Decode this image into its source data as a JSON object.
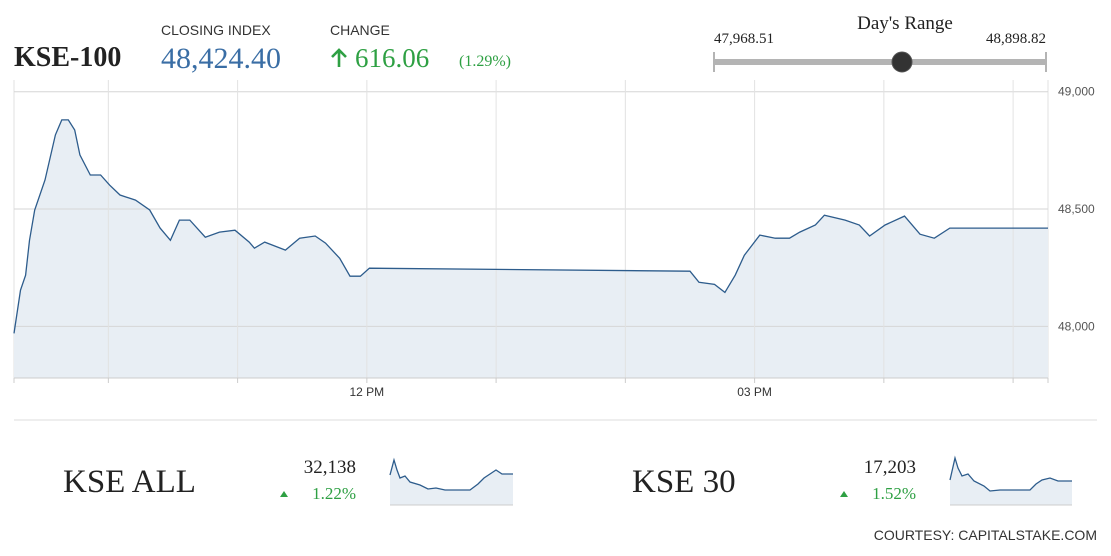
{
  "header": {
    "title": "KSE-100",
    "closing_label": "CLOSING INDEX",
    "closing_value": "48,424.40",
    "change_label": "CHANGE",
    "change_value": "616.06",
    "change_percent": "(1.29%)"
  },
  "range": {
    "title": "Day's Range",
    "low": "47,968.51",
    "high": "48,898.82"
  },
  "chart_data": {
    "type": "area",
    "x": [
      9.27,
      9.32,
      9.36,
      9.39,
      9.43,
      9.51,
      9.59,
      9.64,
      9.69,
      9.74,
      9.78,
      9.86,
      9.94,
      10.01,
      10.09,
      10.21,
      10.32,
      10.4,
      10.48,
      10.55,
      10.63,
      10.75,
      10.86,
      10.98,
      11.09,
      11.13,
      11.21,
      11.37,
      11.48,
      11.6,
      11.68,
      11.79,
      11.87,
      11.95,
      12.02,
      14.5,
      14.57,
      14.69,
      14.77,
      14.85,
      14.92,
      15.04,
      15.16,
      15.27,
      15.35,
      15.47,
      15.54,
      15.7,
      15.81,
      15.89,
      16.01,
      16.16,
      16.28,
      16.39,
      16.51,
      17.27
    ],
    "values": [
      47970,
      48154,
      48218,
      48367,
      48496,
      48624,
      48816,
      48880,
      48880,
      48837,
      48731,
      48645,
      48645,
      48602,
      48560,
      48538,
      48496,
      48419,
      48367,
      48453,
      48453,
      48380,
      48402,
      48410,
      48359,
      48333,
      48359,
      48325,
      48376,
      48385,
      48355,
      48290,
      48214,
      48214,
      48248,
      48235,
      48188,
      48179,
      48145,
      48218,
      48303,
      48389,
      48376,
      48376,
      48402,
      48432,
      48474,
      48453,
      48432,
      48385,
      48432,
      48470,
      48393,
      48376,
      48419,
      48419
    ],
    "xlim": [
      9.27,
      17.27
    ],
    "ylim": [
      47780,
      49050
    ],
    "xticks": [
      {
        "value": 12,
        "label": "12 PM"
      },
      {
        "value": 15,
        "label": "03 PM"
      }
    ],
    "xgridlines": [
      10,
      11,
      13,
      14,
      16,
      17
    ],
    "yticks": [
      {
        "value": 48000,
        "label": "48,000"
      },
      {
        "value": 48500,
        "label": "48,500"
      },
      {
        "value": 49000,
        "label": "49,000"
      }
    ],
    "color": "#2d5c8c",
    "grid": true
  },
  "indices": [
    {
      "name": "KSE ALL",
      "value": "32,138",
      "change": "1.22%"
    },
    {
      "name": "KSE 30",
      "value": "17,203",
      "change": "1.52%"
    }
  ],
  "footer": "COURTESY: CAPITALSTAKE.COM"
}
